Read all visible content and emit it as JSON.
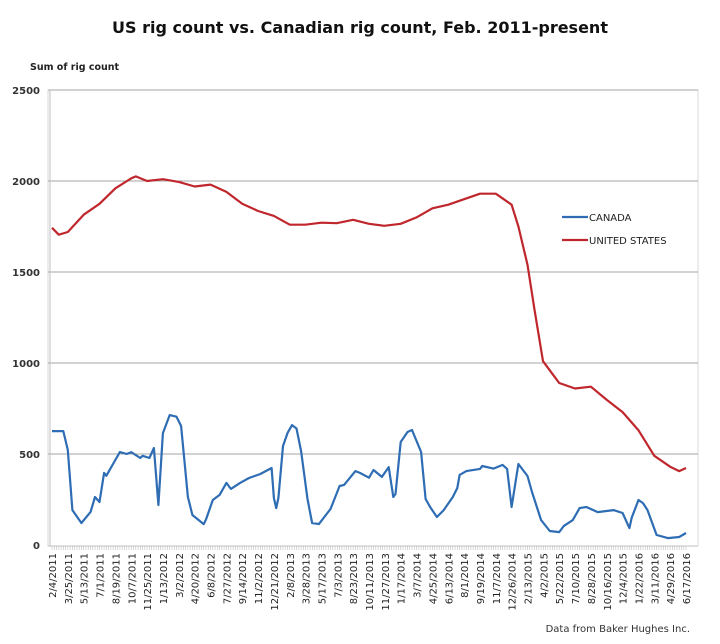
{
  "chart_data": {
    "type": "line",
    "title": "US rig count vs. Canadian rig count, Feb. 2011-present",
    "ylabel": "Sum of rig count",
    "xlabel": "",
    "ylim": [
      0,
      2500
    ],
    "yticks": [
      0,
      500,
      1000,
      1500,
      2000,
      2500
    ],
    "grid": "horizontal",
    "legend_position": "right",
    "xlim": [
      "2/4/2011",
      "6/17/2016"
    ],
    "xtick_labels": [
      "2/4/2011",
      "3/25/2011",
      "5/13/2011",
      "7/1/2011",
      "8/19/2011",
      "10/7/2011",
      "11/25/2011",
      "1/13/2012",
      "3/2/2012",
      "4/20/2012",
      "6/8/2012",
      "7/27/2012",
      "9/14/2012",
      "11/2/2012",
      "12/21/2012",
      "2/8/2013",
      "3/28/2013",
      "5/17/2013",
      "7/3/2013",
      "8/23/2013",
      "10/11/2013",
      "11/27/2013",
      "1/17/2014",
      "3/7/2014",
      "4/25/2014",
      "6/13/2014",
      "8/1/2014",
      "9/19/2014",
      "11/7/2014",
      "12/26/2014",
      "2/13/2015",
      "4/2/2015",
      "5/22/2015",
      "7/10/2015",
      "8/28/2015",
      "10/16/2015",
      "12/4/2015",
      "1/22/2016",
      "3/11/2016",
      "4/29/2016",
      "6/17/2016"
    ],
    "series": [
      {
        "name": "CANADA",
        "color": "#2e6db4",
        "points": [
          [
            "2/4/2011",
            626
          ],
          [
            "3/11/2011",
            626
          ],
          [
            "3/25/2011",
            522
          ],
          [
            "4/8/2011",
            192
          ],
          [
            "5/6/2011",
            121
          ],
          [
            "6/3/2011",
            181
          ],
          [
            "6/17/2011",
            264
          ],
          [
            "7/1/2011",
            236
          ],
          [
            "7/15/2011",
            396
          ],
          [
            "7/22/2011",
            380
          ],
          [
            "9/2/2011",
            511
          ],
          [
            "9/23/2011",
            500
          ],
          [
            "10/7/2011",
            510
          ],
          [
            "11/4/2011",
            478
          ],
          [
            "11/11/2011",
            490
          ],
          [
            "12/2/2011",
            478
          ],
          [
            "12/16/2011",
            533
          ],
          [
            "12/30/2011",
            220
          ],
          [
            "1/13/2012",
            615
          ],
          [
            "2/3/2012",
            714
          ],
          [
            "2/24/2012",
            705
          ],
          [
            "3/9/2012",
            654
          ],
          [
            "3/30/2012",
            264
          ],
          [
            "4/13/2012",
            165
          ],
          [
            "5/18/2012",
            115
          ],
          [
            "5/25/2012",
            140
          ],
          [
            "6/15/2012",
            247
          ],
          [
            "7/6/2012",
            275
          ],
          [
            "7/27/2012",
            341
          ],
          [
            "8/10/2012",
            308
          ],
          [
            "9/7/2012",
            340
          ],
          [
            "10/5/2012",
            368
          ],
          [
            "11/9/2012",
            390
          ],
          [
            "12/14/2012",
            423
          ],
          [
            "12/21/2012",
            258
          ],
          [
            "12/28/2012",
            203
          ],
          [
            "1/4/2013",
            258
          ],
          [
            "1/18/2013",
            544
          ],
          [
            "2/1/2013",
            615
          ],
          [
            "2/15/2013",
            659
          ],
          [
            "3/1/2013",
            640
          ],
          [
            "3/15/2013",
            516
          ],
          [
            "4/4/2013",
            253
          ],
          [
            "4/18/2013",
            121
          ],
          [
            "5/9/2013",
            115
          ],
          [
            "6/14/2013",
            198
          ],
          [
            "7/12/2013",
            324
          ],
          [
            "7/26/2013",
            330
          ],
          [
            "8/30/2013",
            406
          ],
          [
            "9/13/2013",
            396
          ],
          [
            "10/11/2013",
            370
          ],
          [
            "10/25/2013",
            412
          ],
          [
            "11/20/2013",
            374
          ],
          [
            "12/11/2013",
            428
          ],
          [
            "12/25/2013",
            264
          ],
          [
            "1/1/2014",
            280
          ],
          [
            "1/17/2014",
            566
          ],
          [
            "2/7/2014",
            621
          ],
          [
            "2/21/2014",
            632
          ],
          [
            "3/21/2014",
            511
          ],
          [
            "4/4/2014",
            253
          ],
          [
            "4/18/2014",
            209
          ],
          [
            "5/9/2014",
            154
          ],
          [
            "5/30/2014",
            192
          ],
          [
            "6/27/2014",
            264
          ],
          [
            "7/11/2014",
            313
          ],
          [
            "7/18/2014",
            385
          ],
          [
            "8/8/2014",
            406
          ],
          [
            "9/19/2014",
            418
          ],
          [
            "9/26/2014",
            434
          ],
          [
            "10/31/2014",
            420
          ],
          [
            "11/28/2014",
            440
          ],
          [
            "12/12/2014",
            418
          ],
          [
            "12/26/2014",
            209
          ],
          [
            "1/16/2015",
            445
          ],
          [
            "2/13/2015",
            379
          ],
          [
            "2/27/2015",
            291
          ],
          [
            "3/27/2015",
            137
          ],
          [
            "4/23/2015",
            77
          ],
          [
            "5/22/2015",
            71
          ],
          [
            "6/5/2015",
            104
          ],
          [
            "7/3/2015",
            137
          ],
          [
            "7/24/2015",
            203
          ],
          [
            "8/14/2015",
            209
          ],
          [
            "9/18/2015",
            181
          ],
          [
            "11/6/2015",
            192
          ],
          [
            "12/4/2015",
            176
          ],
          [
            "12/25/2015",
            93
          ],
          [
            "1/1/2016",
            150
          ],
          [
            "1/22/2016",
            247
          ],
          [
            "2/5/2016",
            230
          ],
          [
            "2/19/2016",
            192
          ],
          [
            "3/18/2016",
            55
          ],
          [
            "4/22/2016",
            38
          ],
          [
            "5/27/2016",
            44
          ],
          [
            "6/17/2016",
            66
          ]
        ]
      },
      {
        "name": "UNITED STATES",
        "color": "#c0272d",
        "points": [
          [
            "2/4/2011",
            1743
          ],
          [
            "2/25/2011",
            1705
          ],
          [
            "3/25/2011",
            1720
          ],
          [
            "5/13/2011",
            1815
          ],
          [
            "7/1/2011",
            1875
          ],
          [
            "8/19/2011",
            1960
          ],
          [
            "10/7/2011",
            2015
          ],
          [
            "10/21/2011",
            2025
          ],
          [
            "11/25/2011",
            2000
          ],
          [
            "1/13/2012",
            2010
          ],
          [
            "3/2/2012",
            1995
          ],
          [
            "4/20/2012",
            1970
          ],
          [
            "6/8/2012",
            1980
          ],
          [
            "7/27/2012",
            1940
          ],
          [
            "9/14/2012",
            1875
          ],
          [
            "11/2/2012",
            1835
          ],
          [
            "12/21/2012",
            1808
          ],
          [
            "2/8/2013",
            1760
          ],
          [
            "3/28/2013",
            1760
          ],
          [
            "5/17/2013",
            1771
          ],
          [
            "7/3/2013",
            1768
          ],
          [
            "8/23/2013",
            1787
          ],
          [
            "10/11/2013",
            1765
          ],
          [
            "11/27/2013",
            1754
          ],
          [
            "1/17/2014",
            1765
          ],
          [
            "3/7/2014",
            1800
          ],
          [
            "4/25/2014",
            1850
          ],
          [
            "6/13/2014",
            1870
          ],
          [
            "8/1/2014",
            1900
          ],
          [
            "9/19/2014",
            1930
          ],
          [
            "11/7/2014",
            1930
          ],
          [
            "12/26/2014",
            1870
          ],
          [
            "1/16/2015",
            1750
          ],
          [
            "2/13/2015",
            1540
          ],
          [
            "3/6/2015",
            1300
          ],
          [
            "4/2/2015",
            1010
          ],
          [
            "5/22/2015",
            890
          ],
          [
            "7/10/2015",
            860
          ],
          [
            "8/28/2015",
            870
          ],
          [
            "10/16/2015",
            797
          ],
          [
            "12/4/2015",
            730
          ],
          [
            "1/22/2016",
            630
          ],
          [
            "3/11/2016",
            490
          ],
          [
            "4/29/2016",
            430
          ],
          [
            "5/27/2016",
            406
          ],
          [
            "6/17/2016",
            423
          ]
        ]
      }
    ],
    "footnote": "Data from Baker Hughes Inc."
  }
}
